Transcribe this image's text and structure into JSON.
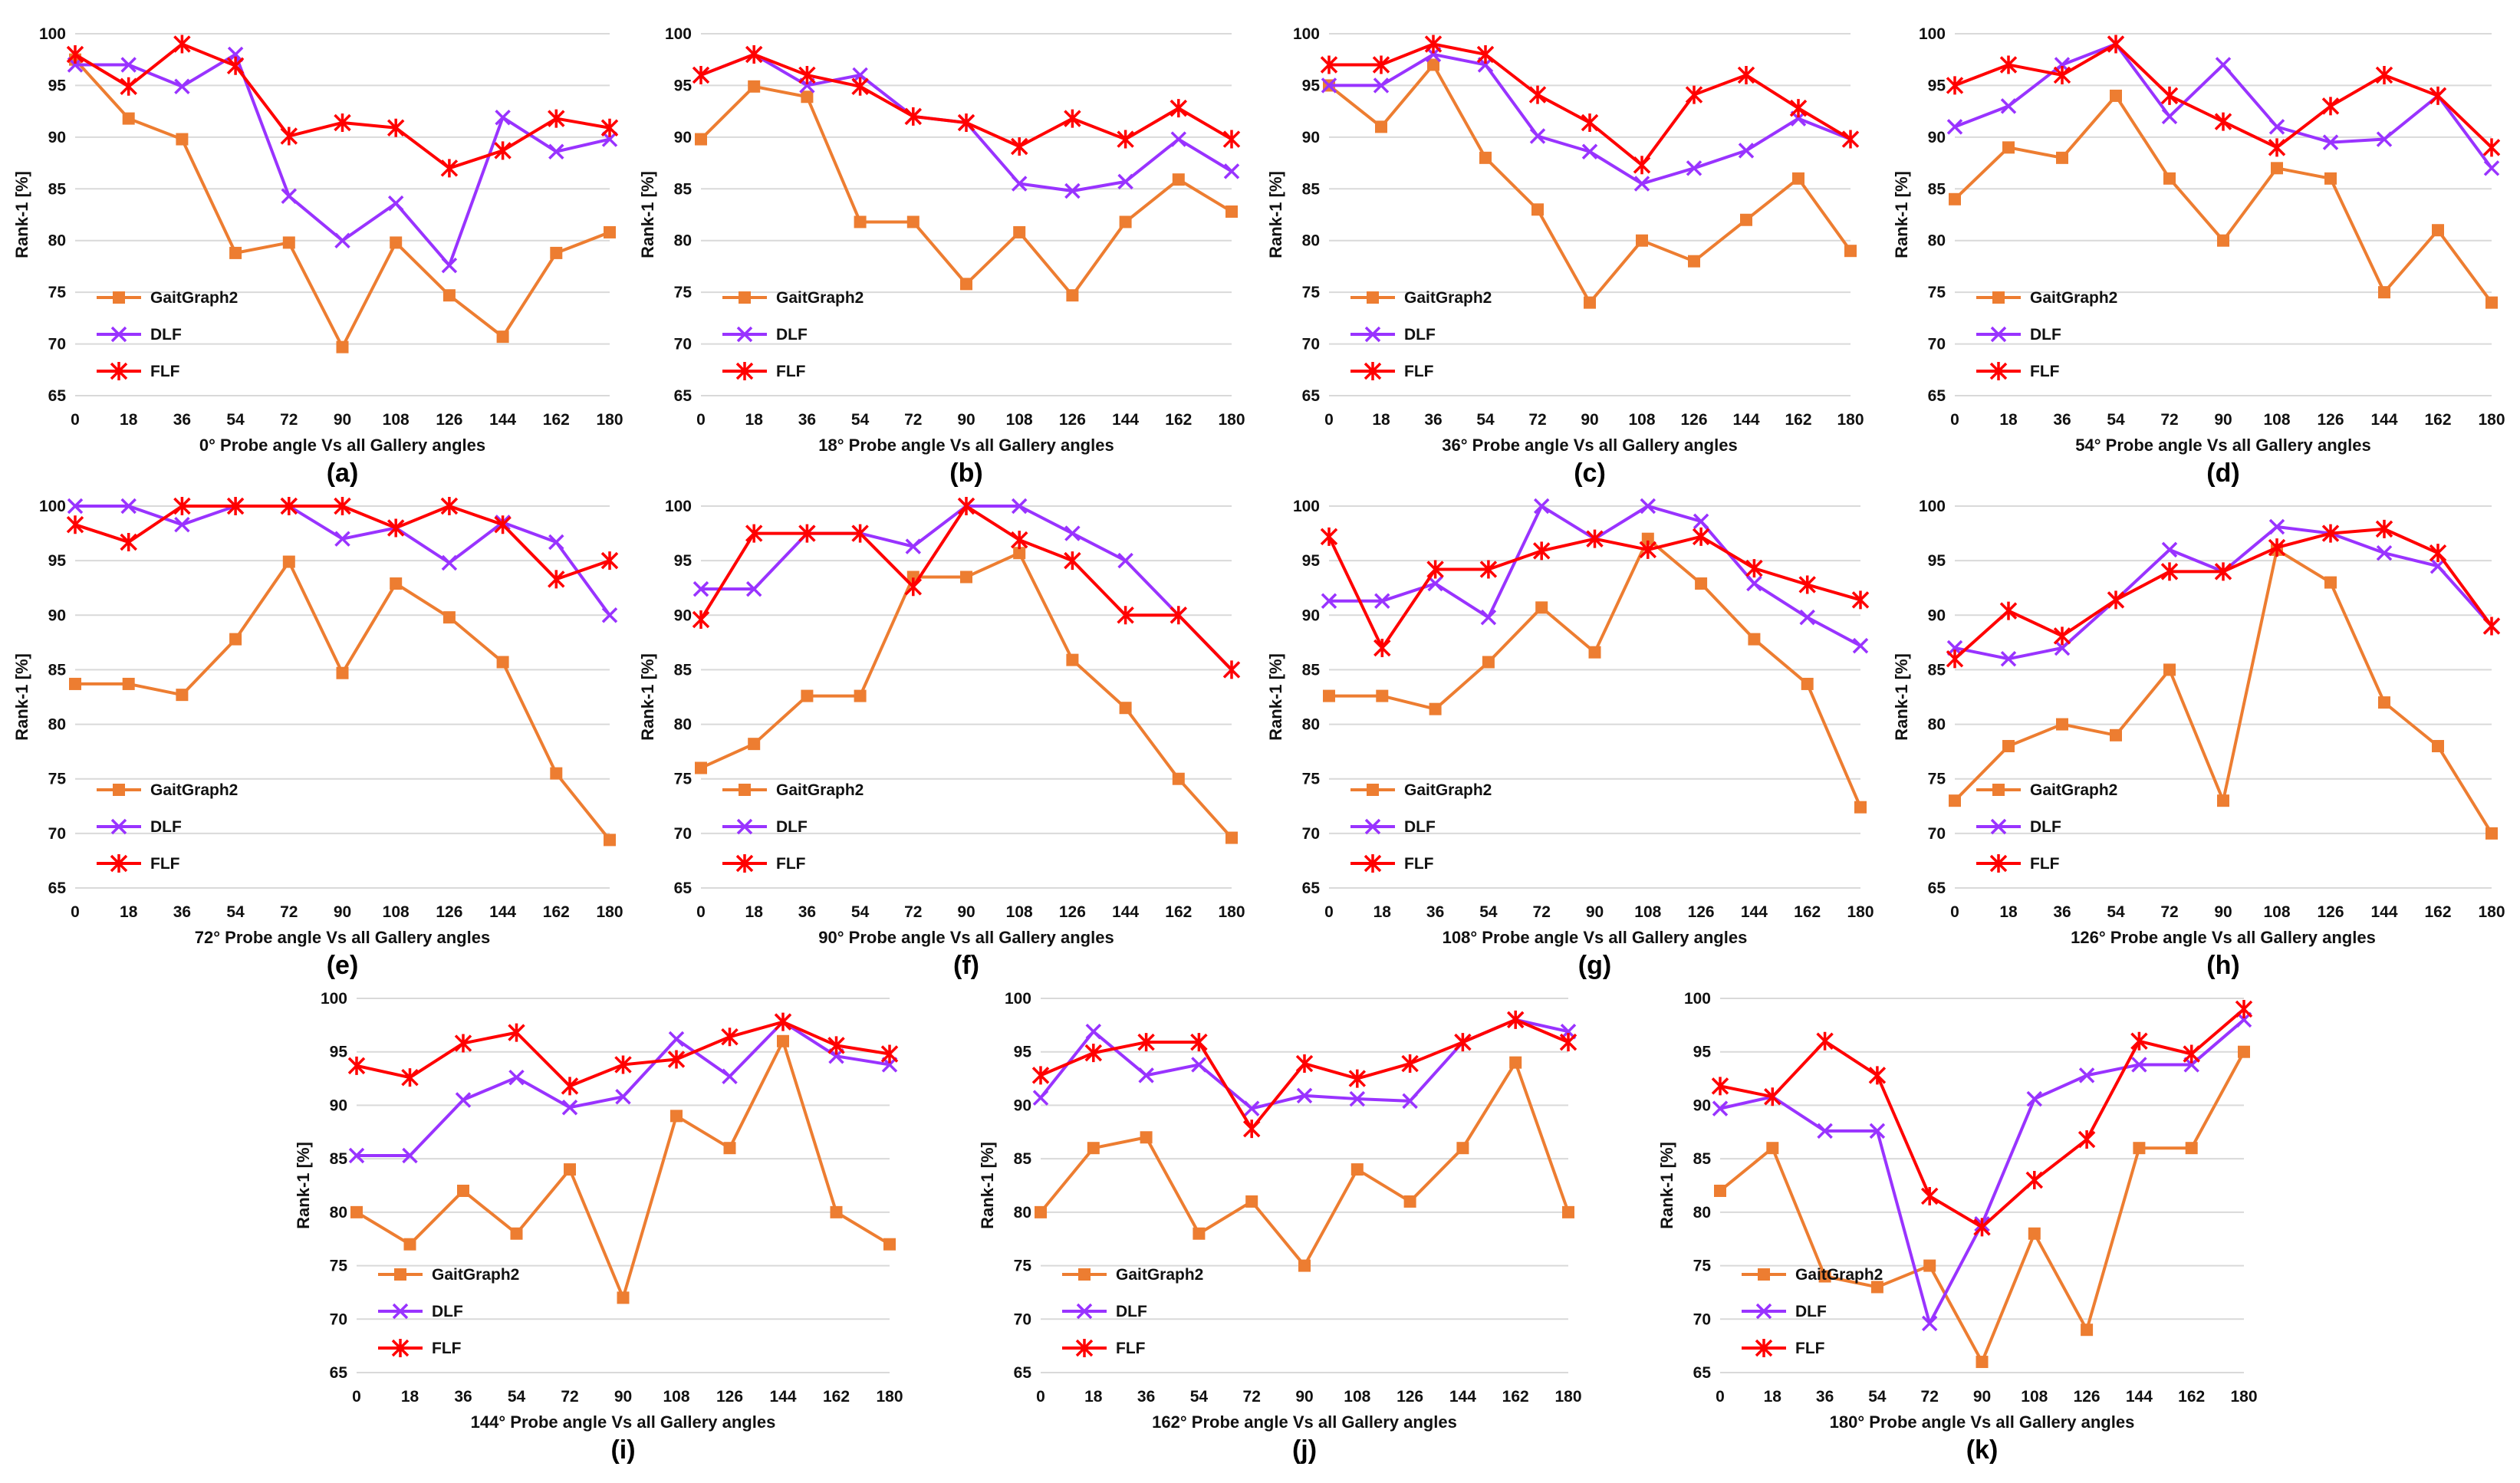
{
  "colors": {
    "GaitGraph2": "#ED7D31",
    "DLF": "#9933FF",
    "FLF": "#FF0000",
    "grid": "#D9D9D9"
  },
  "chart_data": [
    {
      "type": "line",
      "label": "(a)",
      "xlabel": "0° Probe angle Vs all Gallery angles",
      "ylabel": "Rank-1 [%]",
      "ylim": [
        65,
        100
      ],
      "yticks": [
        65,
        70,
        75,
        80,
        85,
        90,
        95,
        100
      ],
      "grid": true,
      "legend": "bottom-left",
      "categories": [
        "0",
        "18",
        "36",
        "54",
        "72",
        "90",
        "108",
        "126",
        "144",
        "162",
        "180"
      ],
      "series": [
        {
          "name": "GaitGraph2",
          "marker": "square",
          "values": [
            97.5,
            91.8,
            89.8,
            78.8,
            79.8,
            69.7,
            79.8,
            74.7,
            70.7,
            78.8,
            80.8
          ]
        },
        {
          "name": "DLF",
          "marker": "x",
          "values": [
            97.0,
            97.0,
            94.9,
            98.0,
            84.3,
            80.0,
            83.6,
            77.6,
            91.9,
            88.6,
            89.8
          ]
        },
        {
          "name": "FLF",
          "marker": "star",
          "values": [
            98.0,
            94.9,
            99.0,
            96.9,
            90.1,
            91.4,
            90.9,
            87.0,
            88.7,
            91.8,
            90.9
          ]
        }
      ]
    },
    {
      "type": "line",
      "label": "(b)",
      "xlabel": "18° Probe angle Vs all Gallery angles",
      "ylabel": "Rank-1 [%]",
      "ylim": [
        65,
        100
      ],
      "yticks": [
        65,
        70,
        75,
        80,
        85,
        90,
        95,
        100
      ],
      "grid": true,
      "legend": "bottom-left",
      "categories": [
        "0",
        "18",
        "36",
        "54",
        "72",
        "90",
        "108",
        "126",
        "144",
        "162",
        "180"
      ],
      "series": [
        {
          "name": "GaitGraph2",
          "marker": "square",
          "values": [
            89.8,
            94.9,
            93.9,
            81.8,
            81.8,
            75.8,
            80.8,
            74.7,
            81.8,
            85.9,
            82.8
          ]
        },
        {
          "name": "DLF",
          "marker": "x",
          "values": [
            96.0,
            98.0,
            95.0,
            96.0,
            92.0,
            91.4,
            85.5,
            84.8,
            85.7,
            89.8,
            86.7
          ]
        },
        {
          "name": "FLF",
          "marker": "star",
          "values": [
            96.0,
            98.0,
            96.0,
            94.9,
            92.0,
            91.4,
            89.1,
            91.8,
            89.8,
            92.8,
            89.8
          ]
        }
      ]
    },
    {
      "type": "line",
      "label": "(c)",
      "xlabel": "36° Probe angle Vs all Gallery angles",
      "ylabel": "Rank-1 [%]",
      "ylim": [
        65,
        100
      ],
      "yticks": [
        65,
        70,
        75,
        80,
        85,
        90,
        95,
        100
      ],
      "grid": true,
      "legend": "bottom-left",
      "categories": [
        "0",
        "18",
        "36",
        "54",
        "72",
        "90",
        "108",
        "126",
        "144",
        "162",
        "180"
      ],
      "series": [
        {
          "name": "GaitGraph2",
          "marker": "square",
          "values": [
            95.0,
            91.0,
            97.0,
            88.0,
            83.0,
            74.0,
            80.0,
            78.0,
            82.0,
            86.0,
            79.0
          ]
        },
        {
          "name": "DLF",
          "marker": "x",
          "values": [
            95.0,
            95.0,
            98.0,
            97.0,
            90.1,
            88.6,
            85.5,
            87.0,
            88.7,
            91.8,
            89.8
          ]
        },
        {
          "name": "FLF",
          "marker": "star",
          "values": [
            97.0,
            97.0,
            99.0,
            98.0,
            94.1,
            91.4,
            87.3,
            94.1,
            96.0,
            92.8,
            89.8
          ]
        }
      ]
    },
    {
      "type": "line",
      "label": "(d)",
      "xlabel": "54° Probe angle Vs all Gallery angles",
      "ylabel": "Rank-1 [%]",
      "ylim": [
        65,
        100
      ],
      "yticks": [
        65,
        70,
        75,
        80,
        85,
        90,
        95,
        100
      ],
      "grid": true,
      "legend": "bottom-left",
      "categories": [
        "0",
        "18",
        "36",
        "54",
        "72",
        "90",
        "108",
        "126",
        "144",
        "162",
        "180"
      ],
      "series": [
        {
          "name": "GaitGraph2",
          "marker": "square",
          "values": [
            84.0,
            89.0,
            88.0,
            94.0,
            86.0,
            80.0,
            87.0,
            86.0,
            75.0,
            81.0,
            74.0
          ]
        },
        {
          "name": "DLF",
          "marker": "x",
          "values": [
            91.0,
            93.0,
            97.0,
            99.0,
            92.0,
            97.0,
            91.0,
            89.5,
            89.8,
            94.0,
            87.0
          ]
        },
        {
          "name": "FLF",
          "marker": "star",
          "values": [
            95.0,
            97.0,
            96.0,
            99.0,
            94.0,
            91.5,
            89.0,
            93.0,
            96.0,
            94.0,
            89.0
          ]
        }
      ]
    },
    {
      "type": "line",
      "label": "(e)",
      "xlabel": "72° Probe angle Vs all Gallery angles",
      "ylabel": "Rank-1 [%]",
      "ylim": [
        65,
        100
      ],
      "yticks": [
        65,
        70,
        75,
        80,
        85,
        90,
        95,
        100
      ],
      "grid": true,
      "legend": "bottom-left",
      "categories": [
        "0",
        "18",
        "36",
        "54",
        "72",
        "90",
        "108",
        "126",
        "144",
        "162",
        "180"
      ],
      "series": [
        {
          "name": "GaitGraph2",
          "marker": "square",
          "values": [
            83.7,
            83.7,
            82.7,
            87.8,
            94.9,
            84.7,
            92.9,
            89.8,
            85.7,
            75.5,
            69.4
          ]
        },
        {
          "name": "DLF",
          "marker": "x",
          "values": [
            100,
            100,
            98.3,
            100,
            100,
            97.0,
            98.0,
            94.8,
            98.5,
            96.7,
            90.0
          ]
        },
        {
          "name": "FLF",
          "marker": "star",
          "values": [
            98.3,
            96.7,
            100,
            100,
            100,
            100,
            98.0,
            100,
            98.3,
            93.3,
            95.0
          ]
        }
      ]
    },
    {
      "type": "line",
      "label": "(f)",
      "xlabel": "90° Probe angle Vs all Gallery angles",
      "ylabel": "Rank-1 [%]",
      "ylim": [
        65,
        100
      ],
      "yticks": [
        65,
        70,
        75,
        80,
        85,
        90,
        95,
        100
      ],
      "grid": true,
      "legend": "bottom-left",
      "categories": [
        "0",
        "18",
        "36",
        "54",
        "72",
        "90",
        "108",
        "126",
        "144",
        "162",
        "180"
      ],
      "series": [
        {
          "name": "GaitGraph2",
          "marker": "square",
          "values": [
            76.0,
            78.2,
            82.6,
            82.6,
            93.5,
            93.5,
            95.7,
            85.9,
            81.5,
            75.0,
            69.6
          ]
        },
        {
          "name": "DLF",
          "marker": "x",
          "values": [
            92.4,
            92.4,
            97.5,
            97.5,
            96.3,
            100,
            100,
            97.5,
            95.0,
            90.0,
            85.0
          ]
        },
        {
          "name": "FLF",
          "marker": "star",
          "values": [
            89.6,
            97.5,
            97.5,
            97.5,
            92.6,
            100,
            96.9,
            95.0,
            90.0,
            90.0,
            85.0
          ]
        }
      ]
    },
    {
      "type": "line",
      "label": "(g)",
      "xlabel": "108° Probe angle Vs all Gallery angles",
      "ylabel": "Rank-1 [%]",
      "ylim": [
        65,
        100
      ],
      "yticks": [
        65,
        70,
        75,
        80,
        85,
        90,
        95,
        100
      ],
      "grid": true,
      "legend": "bottom-left",
      "categories": [
        "0",
        "18",
        "36",
        "54",
        "72",
        "90",
        "108",
        "126",
        "144",
        "162",
        "180"
      ],
      "series": [
        {
          "name": "GaitGraph2",
          "marker": "square",
          "values": [
            82.6,
            82.6,
            81.4,
            85.7,
            90.7,
            86.6,
            97.0,
            92.9,
            87.8,
            83.7,
            72.4
          ]
        },
        {
          "name": "DLF",
          "marker": "x",
          "values": [
            91.3,
            91.3,
            92.9,
            89.8,
            100,
            97.0,
            100,
            98.6,
            92.9,
            89.8,
            87.2
          ]
        },
        {
          "name": "FLF",
          "marker": "star",
          "values": [
            97.2,
            87.0,
            94.2,
            94.2,
            95.9,
            97.0,
            96.0,
            97.2,
            94.3,
            92.8,
            91.4
          ]
        }
      ]
    },
    {
      "type": "line",
      "label": "(h)",
      "xlabel": "126° Probe angle Vs all Gallery angles",
      "ylabel": "Rank-1 [%]",
      "ylim": [
        65,
        100
      ],
      "yticks": [
        65,
        70,
        75,
        80,
        85,
        90,
        95,
        100
      ],
      "grid": true,
      "legend": "bottom-left",
      "categories": [
        "0",
        "18",
        "36",
        "54",
        "72",
        "90",
        "108",
        "126",
        "144",
        "162",
        "180"
      ],
      "series": [
        {
          "name": "GaitGraph2",
          "marker": "square",
          "values": [
            73.0,
            78.0,
            80.0,
            79.0,
            85.0,
            73.0,
            96.0,
            93.0,
            82.0,
            78.0,
            70.0
          ]
        },
        {
          "name": "DLF",
          "marker": "x",
          "values": [
            87.0,
            86.0,
            87.0,
            91.4,
            96.0,
            94.0,
            98.1,
            97.5,
            95.7,
            94.5,
            89.0
          ]
        },
        {
          "name": "FLF",
          "marker": "star",
          "values": [
            86.0,
            90.4,
            88.1,
            91.4,
            94.0,
            94.0,
            96.2,
            97.5,
            97.9,
            95.7,
            89.0
          ]
        }
      ]
    },
    {
      "type": "line",
      "label": "(i)",
      "xlabel": "144° Probe angle Vs all Gallery angles",
      "ylabel": "Rank-1 [%]",
      "ylim": [
        65,
        100
      ],
      "yticks": [
        65,
        70,
        75,
        80,
        85,
        90,
        95,
        100
      ],
      "grid": true,
      "legend": "bottom-left",
      "categories": [
        "0",
        "18",
        "36",
        "54",
        "72",
        "90",
        "108",
        "126",
        "144",
        "162",
        "180"
      ],
      "series": [
        {
          "name": "GaitGraph2",
          "marker": "square",
          "values": [
            80.0,
            77.0,
            82.0,
            78.0,
            84.0,
            72.0,
            89.0,
            86.0,
            96.0,
            80.0,
            77.0
          ]
        },
        {
          "name": "DLF",
          "marker": "x",
          "values": [
            85.3,
            85.3,
            90.5,
            92.6,
            89.8,
            90.8,
            96.2,
            92.7,
            97.8,
            94.6,
            93.8
          ]
        },
        {
          "name": "FLF",
          "marker": "star",
          "values": [
            93.7,
            92.6,
            95.8,
            96.8,
            91.8,
            93.8,
            94.3,
            96.4,
            97.8,
            95.6,
            94.8
          ]
        }
      ]
    },
    {
      "type": "line",
      "label": "(j)",
      "xlabel": "162° Probe angle Vs all Gallery angles",
      "ylabel": "Rank-1 [%]",
      "ylim": [
        65,
        100
      ],
      "yticks": [
        65,
        70,
        75,
        80,
        85,
        90,
        95,
        100
      ],
      "grid": true,
      "legend": "bottom-left",
      "categories": [
        "0",
        "18",
        "36",
        "54",
        "72",
        "90",
        "108",
        "126",
        "144",
        "162",
        "180"
      ],
      "series": [
        {
          "name": "GaitGraph2",
          "marker": "square",
          "values": [
            80.0,
            86.0,
            87.0,
            78.0,
            81.0,
            75.0,
            84.0,
            81.0,
            86.0,
            94.0,
            80.0
          ]
        },
        {
          "name": "DLF",
          "marker": "x",
          "values": [
            90.7,
            96.9,
            92.8,
            93.8,
            89.7,
            90.9,
            90.6,
            90.4,
            95.9,
            98.0,
            96.9
          ]
        },
        {
          "name": "FLF",
          "marker": "star",
          "values": [
            92.8,
            94.9,
            95.9,
            95.9,
            87.8,
            93.9,
            92.5,
            93.9,
            95.9,
            98.0,
            95.9
          ]
        }
      ]
    },
    {
      "type": "line",
      "label": "(k)",
      "xlabel": "180° Probe angle Vs all Gallery angles",
      "ylabel": "Rank-1 [%]",
      "ylim": [
        65,
        100
      ],
      "yticks": [
        65,
        70,
        75,
        80,
        85,
        90,
        95,
        100
      ],
      "grid": true,
      "legend": "bottom-left",
      "categories": [
        "0",
        "18",
        "36",
        "54",
        "72",
        "90",
        "108",
        "126",
        "144",
        "162",
        "180"
      ],
      "series": [
        {
          "name": "GaitGraph2",
          "marker": "square",
          "values": [
            82.0,
            86.0,
            74.0,
            73.0,
            75.0,
            66.0,
            78.0,
            69.0,
            86.0,
            86.0,
            95.0
          ]
        },
        {
          "name": "DLF",
          "marker": "x",
          "values": [
            89.7,
            90.8,
            87.6,
            87.6,
            69.6,
            78.9,
            90.6,
            92.8,
            93.8,
            93.8,
            98.0
          ]
        },
        {
          "name": "FLF",
          "marker": "star",
          "values": [
            91.8,
            90.8,
            96.0,
            92.8,
            81.5,
            78.6,
            83.0,
            86.8,
            96.0,
            94.8,
            99.0
          ]
        }
      ]
    }
  ]
}
